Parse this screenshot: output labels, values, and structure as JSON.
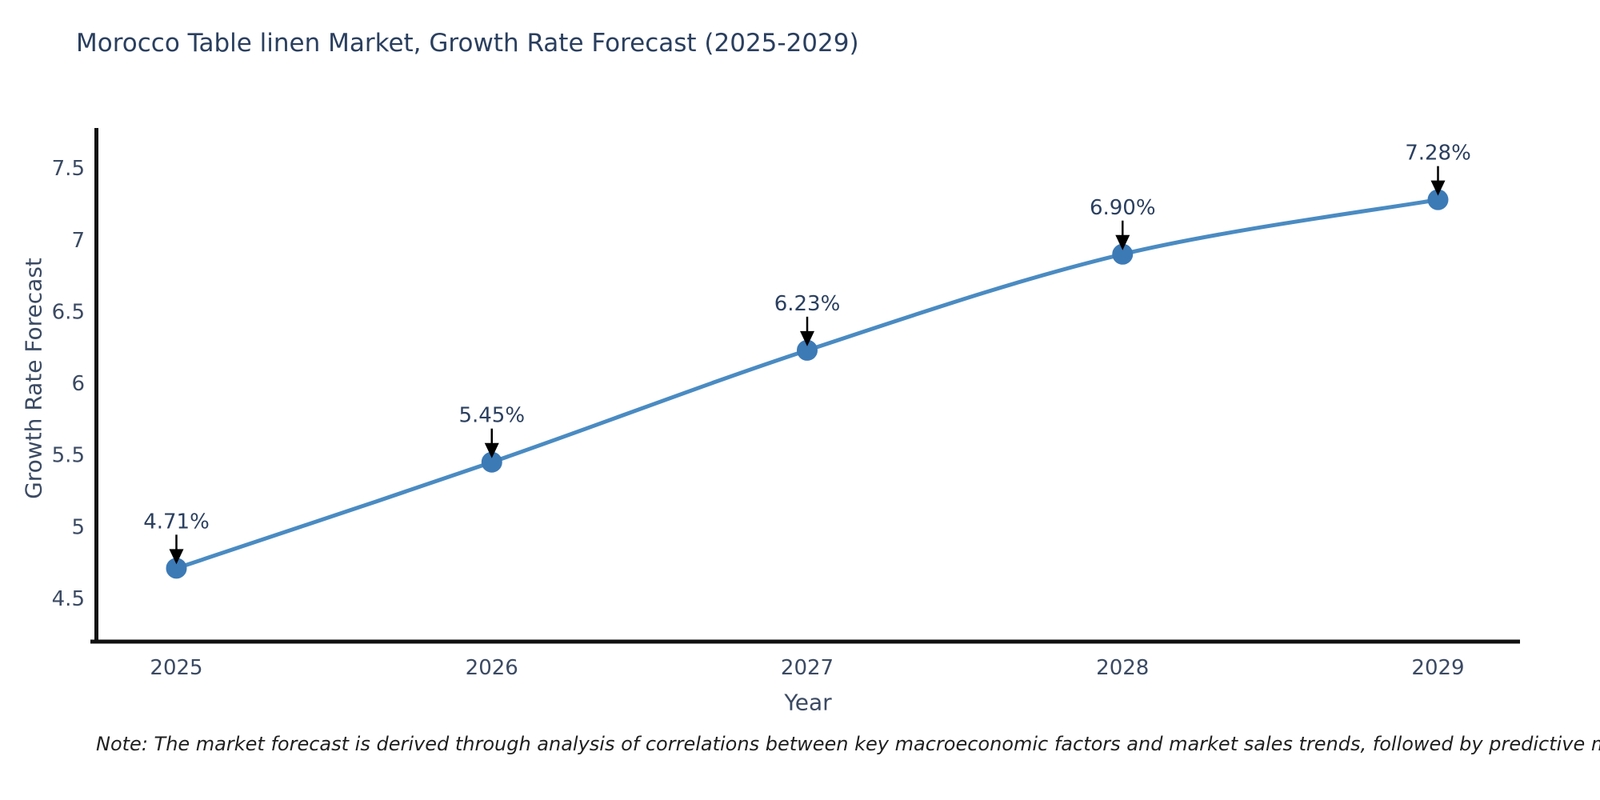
{
  "title": "Morocco Table linen Market, Growth Rate Forecast (2025-2029)",
  "note": "Note: The market forecast is derived through analysis of correlations between key macroeconomic factors and market sales trends, followed by predictive modeling to project future sales",
  "chart_data": {
    "type": "line",
    "title": "Morocco Table linen Market, Growth Rate Forecast (2025-2029)",
    "x": [
      2025,
      2026,
      2027,
      2028,
      2029
    ],
    "values": [
      4.71,
      5.45,
      6.23,
      6.9,
      7.28
    ],
    "point_labels": [
      "4.71%",
      "5.45%",
      "6.23%",
      "6.90%",
      "7.28%"
    ],
    "series_name": "Growth Rate Forecast",
    "xlabel": "Year",
    "ylabel": "Growth Rate Forecast",
    "x_tick_labels": [
      "2025",
      "2026",
      "2027",
      "2028",
      "2029"
    ],
    "y_ticks": [
      4.5,
      5,
      5.5,
      6,
      6.5,
      7,
      7.5
    ],
    "y_tick_labels": [
      "4.5",
      "5",
      "5.5",
      "6",
      "6.5",
      "7",
      "7.5"
    ],
    "xlim": [
      2024.74,
      2029.26
    ],
    "ylim": [
      4.21,
      7.78
    ],
    "grid": false,
    "legend": false,
    "annotations_have_arrows": true,
    "colors": {
      "line": "#4a8bc2",
      "marker": "#3c7ab6",
      "annotation_text": "#2a3f5f",
      "annotation_arrow": "#000000",
      "title_text": "#2a3f5f",
      "axis_text": "#3b4a63",
      "axis_line": "#111111",
      "background": "#ffffff"
    }
  }
}
